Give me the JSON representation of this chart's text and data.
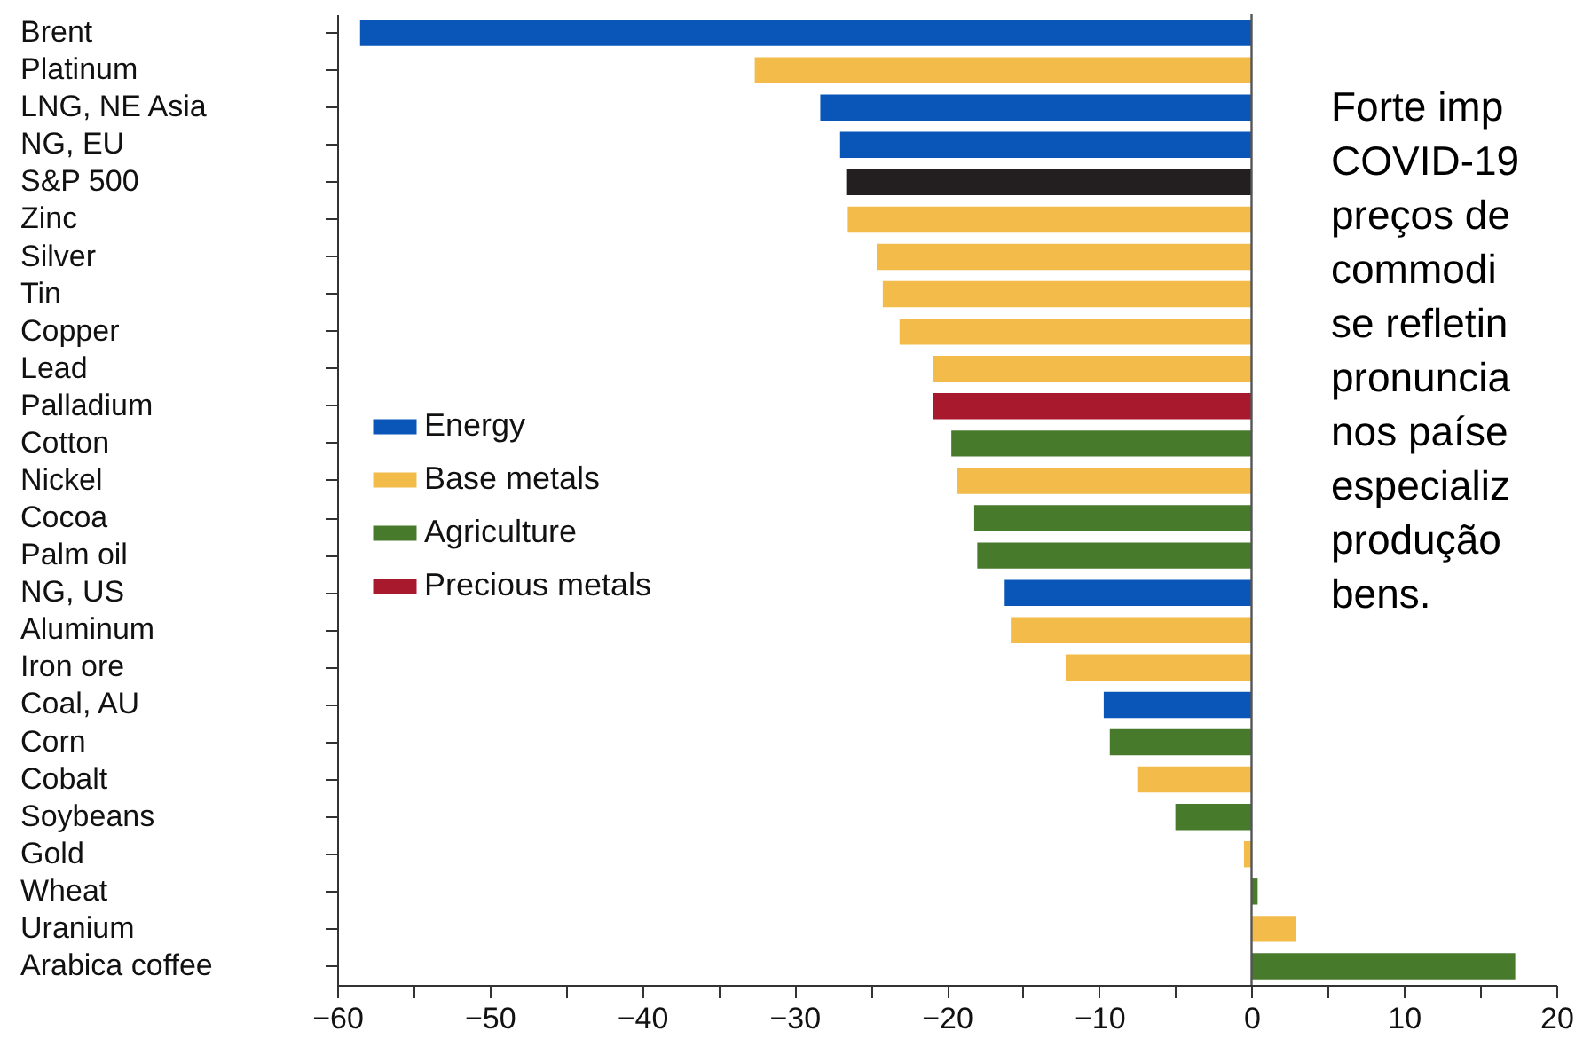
{
  "chart_data": {
    "type": "bar",
    "orientation": "horizontal",
    "categories": [
      "Brent",
      "Platinum",
      "LNG, NE Asia",
      "NG, EU",
      "S&P 500",
      "Zinc",
      "Silver",
      "Tin",
      "Copper",
      "Lead",
      "Palladium",
      "Cotton",
      "Nickel",
      "Cocoa",
      "Palm oil",
      "NG, US",
      "Aluminum",
      "Iron ore",
      "Coal, AU",
      "Corn",
      "Cobalt",
      "Soybeans",
      "Gold",
      "Wheat",
      "Uranium",
      "Arabica coffee"
    ],
    "series": [
      {
        "name": "Energy",
        "color": "#0a56b8",
        "values": [
          -58.5,
          null,
          -28.3,
          -27.0,
          null,
          null,
          null,
          null,
          null,
          null,
          null,
          null,
          null,
          null,
          null,
          -16.2,
          null,
          null,
          -9.7,
          null,
          null,
          null,
          null,
          null,
          null,
          null
        ]
      },
      {
        "name": "Base metals",
        "color": "#f3bc4a",
        "values": [
          null,
          -32.6,
          null,
          null,
          null,
          -26.5,
          -24.6,
          -24.2,
          -23.1,
          -20.9,
          null,
          null,
          -19.3,
          null,
          null,
          null,
          -15.8,
          -12.2,
          null,
          null,
          -7.5,
          null,
          -0.5,
          null,
          2.9,
          null
        ]
      },
      {
        "name": "Agriculture",
        "color": "#487a2c",
        "values": [
          null,
          null,
          null,
          null,
          null,
          null,
          null,
          null,
          null,
          null,
          null,
          -19.7,
          null,
          -18.2,
          -18.0,
          null,
          null,
          null,
          null,
          -9.3,
          null,
          -5.0,
          null,
          0.4,
          null,
          17.3
        ]
      },
      {
        "name": "Precious metals",
        "color": "#a8192d",
        "values": [
          null,
          null,
          null,
          null,
          null,
          null,
          null,
          null,
          null,
          null,
          -20.9,
          null,
          null,
          null,
          null,
          null,
          null,
          null,
          null,
          null,
          null,
          null,
          null,
          null,
          null,
          null
        ]
      },
      {
        "color": "#231f20",
        "values": [
          null,
          null,
          null,
          null,
          -26.6,
          null,
          null,
          null,
          null,
          null,
          null,
          null,
          null,
          null,
          null,
          null,
          null,
          null,
          null,
          null,
          null,
          null,
          null,
          null,
          null,
          null
        ]
      }
    ],
    "xlim": [
      -60,
      20
    ],
    "xticks": [
      {
        "value": -60,
        "label": "−60"
      },
      {
        "value": -55,
        "label": null
      },
      {
        "value": -50,
        "label": "−50"
      },
      {
        "value": -45,
        "label": null
      },
      {
        "value": -40,
        "label": "−40"
      },
      {
        "value": -35,
        "label": null
      },
      {
        "value": -30,
        "label": "−30"
      },
      {
        "value": -25,
        "label": null
      },
      {
        "value": -20,
        "label": "−20"
      },
      {
        "value": -15,
        "label": null
      },
      {
        "value": -10,
        "label": "−10"
      },
      {
        "value": -5,
        "label": null
      },
      0,
      {
        "value": 5,
        "label": null
      },
      10,
      {
        "value": 15,
        "label": null
      },
      20
    ],
    "ref_lines": [
      {
        "axis": "x",
        "value": 0,
        "color": "#555555"
      }
    ],
    "legend": "left",
    "grid": false,
    "annotations": [
      "Forte imp\nCOVID-19\npreços de\ncommodi\nse refletin\npronuncia\nnos paíse\nespecializ\nprodução\nbens."
    ]
  }
}
